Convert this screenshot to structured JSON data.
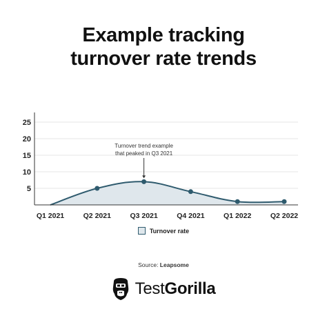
{
  "title_line1": "Example tracking",
  "title_line2": "turnover rate trends",
  "chart_data": {
    "type": "area",
    "categories": [
      "Q1 2021",
      "Q2 2021",
      "Q3 2021",
      "Q4 2021",
      "Q1 2022",
      "Q2 2022"
    ],
    "series": [
      {
        "name": "Turnover rate",
        "values": [
          0,
          5,
          7,
          4,
          1,
          1
        ]
      }
    ],
    "yticks": [
      5,
      10,
      15,
      20,
      25
    ],
    "ylim": [
      0,
      25
    ],
    "grid": true,
    "legend_position": "bottom",
    "annotation": {
      "line1": "Turnover trend example",
      "line2": "that peaked in Q3 2021",
      "category": "Q3 2021"
    },
    "colors": {
      "line": "#2f5b6e",
      "fill": "#dfe7ec",
      "grid": "#e6e6e6",
      "axis": "#333333"
    }
  },
  "source_prefix": "Source: ",
  "source_name": "Leapsome",
  "brand": {
    "name_light": "Test",
    "name_bold": "Gorilla",
    "logo_icon": "gorilla-head-icon"
  }
}
